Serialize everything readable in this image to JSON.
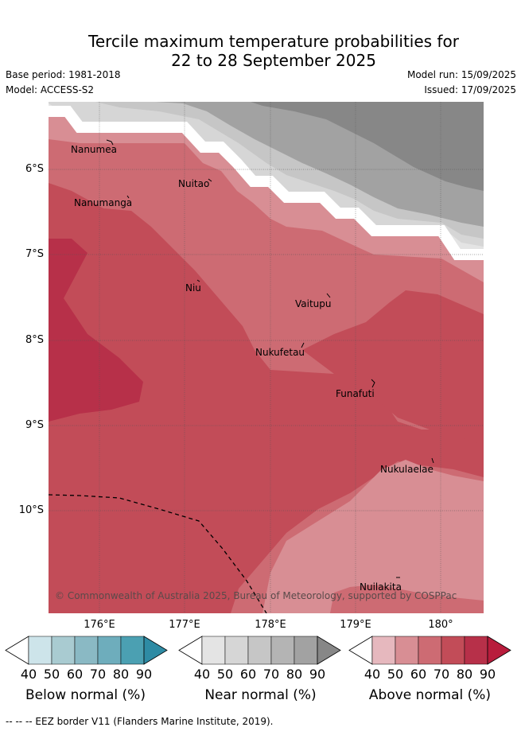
{
  "title_line1": "Tercile maximum temperature probabilities for",
  "title_line2": "22 to 28 September 2025",
  "base_period": "Base period: 1981-2018",
  "model": "Model: ACCESS-S2",
  "model_run": "Model run: 15/09/2025",
  "issued": "Issued: 17/09/2025",
  "lat_labels": [
    "6°S",
    "7°S",
    "8°S",
    "9°S",
    "10°S"
  ],
  "lon_labels": [
    "176°E",
    "177°E",
    "178°E",
    "179°E",
    "180°"
  ],
  "places": {
    "nanumea": "Nanumea",
    "nuitao": "Nuitao",
    "nanumanga": "Nanumanga",
    "niu": "Niu",
    "vaitupu": "Vaitupu",
    "nukufetau": "Nukufetau",
    "funafuti": "Funafuti",
    "nukulaelae": "Nukulaelae",
    "nuilakita": "Nuilakita"
  },
  "copyright": "© Commonwealth of Australia 2025, Bureau of Meteorology, supported by COSPPac",
  "colorbars": {
    "below": {
      "title": "Below normal (%)",
      "ticks": [
        "40",
        "50",
        "60",
        "70",
        "80",
        "90"
      ],
      "colors": [
        "#ffffff",
        "#cde4ea",
        "#a9cbd1",
        "#8ab9c4",
        "#6eadbc",
        "#4ba0b2",
        "#2e8ba4"
      ]
    },
    "near": {
      "title": "Near normal (%)",
      "ticks": [
        "40",
        "50",
        "60",
        "70",
        "80",
        "90"
      ],
      "colors": [
        "#ffffff",
        "#e4e4e4",
        "#d6d6d6",
        "#c6c6c6",
        "#b4b4b4",
        "#a2a2a2",
        "#878787"
      ]
    },
    "above": {
      "title": "Above normal (%)",
      "ticks": [
        "40",
        "50",
        "60",
        "70",
        "80",
        "90"
      ],
      "colors": [
        "#ffffff",
        "#e6b8be",
        "#d88e94",
        "#cd6b73",
        "#c24c58",
        "#b73049",
        "#b81c3c"
      ]
    }
  },
  "footer": "--  --  -- EEZ border V11 (Flanders Marine Institute, 2019)."
}
